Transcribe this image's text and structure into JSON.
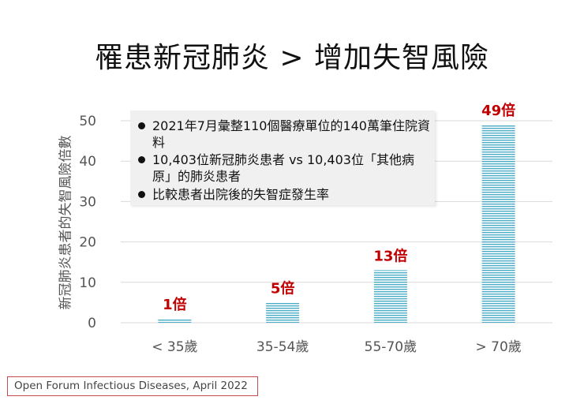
{
  "slide": {
    "title": "罹患新冠肺炎 > 增加失智風險",
    "source": "Open Forum Infectious Diseases, April 2022"
  },
  "notes": [
    "2021年7月彙整110個醫療單位的140萬筆住院資料",
    "10,403位新冠肺炎患者 vs 10,403位「其他病原」的肺炎患者",
    "比較患者出院後的失智症發生率"
  ],
  "colors": {
    "bar_stripe": "#4bacc6",
    "data_label": "#c00000",
    "gridline": "#d9d9d9",
    "source_border": "#c0504d"
  },
  "chart_data": {
    "type": "bar",
    "title": "",
    "xlabel": "",
    "ylabel": "新冠肺炎患者的失智風險倍數",
    "categories": [
      "< 35歲",
      "35-54歲",
      "55-70歲",
      "> 70歲"
    ],
    "values": [
      1,
      5,
      13,
      49
    ],
    "data_labels": [
      "1倍",
      "5倍",
      "13倍",
      "49倍"
    ],
    "ylim": [
      0,
      50
    ],
    "yticks": [
      0,
      10,
      20,
      30,
      40,
      50
    ],
    "grid": true,
    "bar_fill": "horizontal-stripes"
  }
}
